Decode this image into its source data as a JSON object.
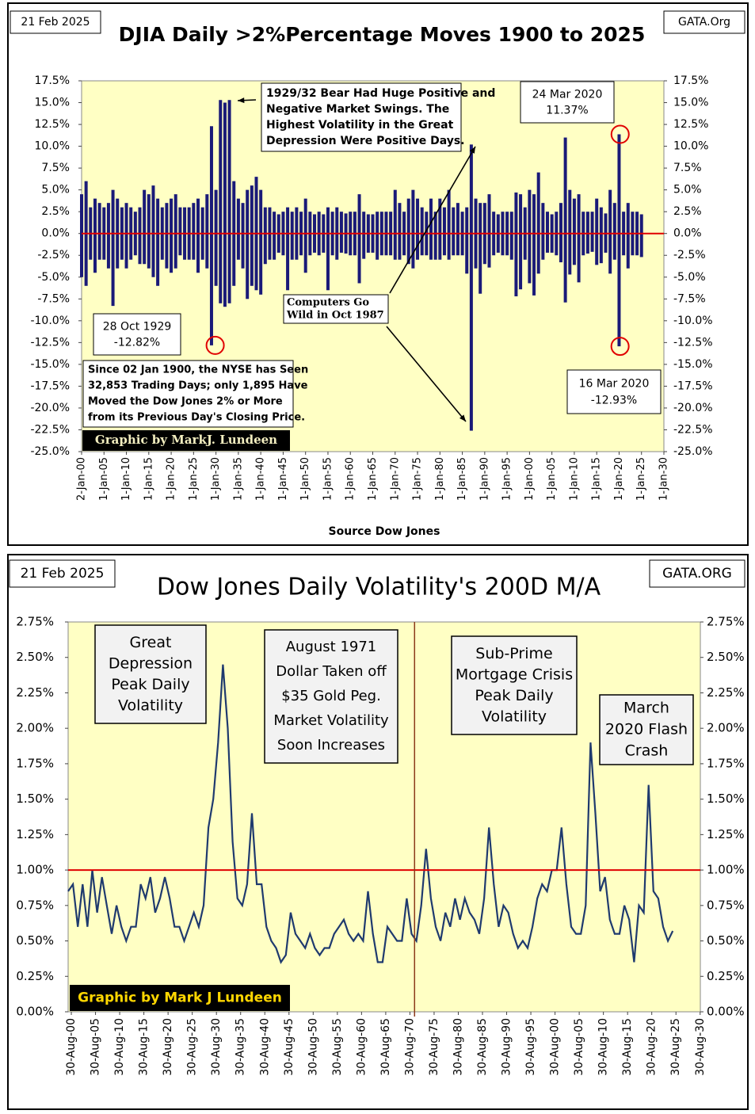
{
  "chart_data": [
    {
      "type": "bar",
      "date": "21 Feb 2025",
      "brand": "GATA.Org",
      "title": "DJIA Daily >2%Percentage Moves 1900 to 2025",
      "xlabel": "Source Dow Jones",
      "credit": "Graphic by MarkJ. Lundeen",
      "xlim": [
        1900,
        2030
      ],
      "ylim": [
        -25,
        17.5
      ],
      "yticks": [
        {
          "value": -25,
          "label": "-25.0%"
        },
        {
          "value": -22.5,
          "label": "-22.5%"
        },
        {
          "value": -20,
          "label": "-20.0%"
        },
        {
          "value": -17.5,
          "label": "-17.5%"
        },
        {
          "value": -15,
          "label": "-15.0%"
        },
        {
          "value": -12.5,
          "label": "-12.5%"
        },
        {
          "value": -10,
          "label": "-10.0%"
        },
        {
          "value": -7.5,
          "label": "-7.5%"
        },
        {
          "value": -5,
          "label": "-5.0%"
        },
        {
          "value": -2.5,
          "label": "-2.5%"
        },
        {
          "value": 0,
          "label": "0.0%"
        },
        {
          "value": 2.5,
          "label": "2.5%"
        },
        {
          "value": 5,
          "label": "5.0%"
        },
        {
          "value": 7.5,
          "label": "7.5%"
        },
        {
          "value": 10,
          "label": "10.0%"
        },
        {
          "value": 12.5,
          "label": "12.5%"
        },
        {
          "value": 15,
          "label": "15.0%"
        },
        {
          "value": 17.5,
          "label": "17.5%"
        }
      ],
      "xticks": [
        {
          "value": 1900,
          "label": "2-Jan-00"
        },
        {
          "value": 1905,
          "label": "1-Jan-05"
        },
        {
          "value": 1910,
          "label": "1-Jan-10"
        },
        {
          "value": 1915,
          "label": "1-Jan-15"
        },
        {
          "value": 1920,
          "label": "1-Jan-20"
        },
        {
          "value": 1925,
          "label": "1-Jan-25"
        },
        {
          "value": 1930,
          "label": "1-Jan-30"
        },
        {
          "value": 1935,
          "label": "1-Jan-35"
        },
        {
          "value": 1940,
          "label": "1-Jan-40"
        },
        {
          "value": 1945,
          "label": "1-Jan-45"
        },
        {
          "value": 1950,
          "label": "1-Jan-50"
        },
        {
          "value": 1955,
          "label": "1-Jan-55"
        },
        {
          "value": 1960,
          "label": "1-Jan-60"
        },
        {
          "value": 1965,
          "label": "1-Jan-65"
        },
        {
          "value": 1970,
          "label": "1-Jan-70"
        },
        {
          "value": 1975,
          "label": "1-Jan-75"
        },
        {
          "value": 1980,
          "label": "1-Jan-80"
        },
        {
          "value": 1985,
          "label": "1-Jan-85"
        },
        {
          "value": 1990,
          "label": "1-Jan-90"
        },
        {
          "value": 1995,
          "label": "1-Jan-95"
        },
        {
          "value": 2000,
          "label": "1-Jan-00"
        },
        {
          "value": 2005,
          "label": "1-Jan-05"
        },
        {
          "value": 2010,
          "label": "1-Jan-10"
        },
        {
          "value": 2015,
          "label": "1-Jan-15"
        },
        {
          "value": 2020,
          "label": "1-Jan-20"
        },
        {
          "value": 2025,
          "label": "1-Jan-25"
        },
        {
          "value": 2030,
          "label": "1-Jan-30"
        }
      ],
      "hline": 0,
      "hline_color": "#e00000",
      "x": [
        1900,
        1901,
        1902,
        1903,
        1904,
        1905,
        1906,
        1907,
        1908,
        1909,
        1910,
        1911,
        1912,
        1913,
        1914,
        1915,
        1916,
        1917,
        1918,
        1919,
        1920,
        1921,
        1922,
        1923,
        1924,
        1925,
        1926,
        1927,
        1928,
        1929,
        1930,
        1931,
        1932,
        1933,
        1934,
        1935,
        1936,
        1937,
        1938,
        1939,
        1940,
        1941,
        1942,
        1943,
        1944,
        1945,
        1946,
        1947,
        1948,
        1949,
        1950,
        1951,
        1952,
        1953,
        1954,
        1955,
        1956,
        1957,
        1958,
        1959,
        1960,
        1961,
        1962,
        1963,
        1964,
        1965,
        1966,
        1967,
        1968,
        1969,
        1970,
        1971,
        1972,
        1973,
        1974,
        1975,
        1976,
        1977,
        1978,
        1979,
        1980,
        1981,
        1982,
        1983,
        1984,
        1985,
        1986,
        1987,
        1988,
        1989,
        1990,
        1991,
        1992,
        1993,
        1994,
        1995,
        1996,
        1997,
        1998,
        1999,
        2000,
        2001,
        2002,
        2003,
        2004,
        2005,
        2006,
        2007,
        2008,
        2009,
        2010,
        2011,
        2012,
        2013,
        2014,
        2015,
        2016,
        2017,
        2018,
        2019,
        2020,
        2021,
        2022,
        2023,
        2024,
        2025
      ],
      "series": [
        {
          "color": "#1a1a78",
          "values": [
            4.5,
            6,
            3,
            4,
            3.5,
            3,
            3.5,
            5,
            4,
            3,
            3.5,
            3,
            2.5,
            3,
            5,
            4.5,
            5.5,
            4,
            3,
            3.5,
            4,
            4.5,
            3,
            3,
            3,
            3.5,
            4,
            3,
            4.5,
            12.3,
            5,
            15.3,
            15,
            15.3,
            6,
            4,
            3.5,
            5,
            5.5,
            6.5,
            5,
            3,
            3,
            2.5,
            2.2,
            2.5,
            3,
            2.5,
            3,
            2.5,
            4,
            2.5,
            2.2,
            2.5,
            2.2,
            3,
            2.5,
            3,
            2.5,
            2.3,
            2.5,
            2.5,
            4.5,
            2.5,
            2.2,
            2.2,
            2.5,
            2.5,
            2.5,
            2.5,
            5,
            3.5,
            2.5,
            4,
            5,
            4,
            3,
            2.5,
            4,
            2.5,
            4,
            3,
            5,
            3,
            3.5,
            2.5,
            3,
            10.2,
            4,
            3.5,
            3.5,
            4.5,
            2.5,
            2.2,
            2.5,
            2.5,
            2.5,
            4.7,
            4.5,
            3,
            5,
            4.5,
            7,
            3.5,
            2.5,
            2.2,
            2.5,
            3.5,
            11,
            5,
            4,
            4.5,
            2.5,
            2.5,
            2.5,
            4,
            3,
            2.3,
            5,
            3.5,
            11.37,
            2.5,
            3.5,
            2.5,
            2.5,
            2.2
          ]
        },
        {
          "color": "#1a1a78",
          "values": [
            -5,
            -6,
            -3,
            -4.5,
            -3,
            -3,
            -4,
            -8.3,
            -4,
            -3,
            -4,
            -3,
            -2.5,
            -3.5,
            -3.5,
            -4,
            -5,
            -6,
            -3,
            -4,
            -4.5,
            -4,
            -2.5,
            -3,
            -3,
            -3,
            -4.5,
            -3,
            -4,
            -12.82,
            -6,
            -8,
            -8.4,
            -8,
            -6,
            -3,
            -4,
            -7.5,
            -6,
            -6.5,
            -7,
            -3.5,
            -3,
            -3,
            -2.2,
            -2.5,
            -6.5,
            -3,
            -3,
            -2.5,
            -4.5,
            -2.5,
            -2.2,
            -2.5,
            -2.2,
            -6.5,
            -2.5,
            -3,
            -2.2,
            -2.3,
            -2.5,
            -2.5,
            -5.7,
            -2.9,
            -2.2,
            -2.2,
            -3,
            -2.5,
            -2.5,
            -2.5,
            -3,
            -3,
            -2.5,
            -3.5,
            -4,
            -3,
            -2.5,
            -2.5,
            -3,
            -3,
            -3,
            -2.5,
            -3,
            -2.5,
            -2.5,
            -2.5,
            -4.6,
            -22.6,
            -4,
            -6.9,
            -3.5,
            -3.9,
            -2.5,
            -2.2,
            -2.5,
            -2.5,
            -3,
            -7.2,
            -6.4,
            -3,
            -5.7,
            -7.1,
            -4.6,
            -3,
            -2.2,
            -2.2,
            -2.5,
            -3.3,
            -7.9,
            -4.7,
            -3.6,
            -5.6,
            -2.5,
            -2.3,
            -2.1,
            -3.6,
            -3.4,
            -2.2,
            -4.6,
            -3,
            -12.93,
            -2.5,
            -4,
            -2.5,
            -2.5,
            -2.7
          ]
        }
      ],
      "highlights": [
        {
          "x": 1929.82,
          "value": -12.82,
          "date": "28 Oct 1929",
          "value_label": "-12.82%"
        },
        {
          "x": 2020.21,
          "value": -12.93,
          "date": "16 Mar 2020",
          "value_label": "-12.93%"
        },
        {
          "x": 2020.23,
          "value": 11.37,
          "date": "24 Mar 2020",
          "value_label": "11.37%"
        }
      ],
      "annotations": [
        {
          "lines": [
            "1929/32 Bear Had Huge Positive and",
            "Negative Market Swings.  The",
            "Highest Volatility in the Great",
            "Depression Were Positive Days."
          ]
        },
        {
          "lines": [
            "Computers Go",
            "Wild in Oct 1987"
          ]
        },
        {
          "lines": [
            "Since 02 Jan 1900, the NYSE has Seen",
            "32,853 Trading Days; only 1,895 Have",
            "Moved the Dow Jones 2% or More",
            "from its Previous Day's Closing Price."
          ]
        }
      ]
    },
    {
      "type": "line",
      "date": "21 Feb 2025",
      "brand": "GATA.ORG",
      "title": "Dow Jones Daily Volatility's 200D M/A",
      "credit": "Graphic by Mark J Lundeen",
      "xlim": [
        1900,
        2030.7
      ],
      "ylim": [
        0,
        2.75
      ],
      "yticks": [
        {
          "value": 0,
          "label": "0.00%"
        },
        {
          "value": 0.25,
          "label": "0.25%"
        },
        {
          "value": 0.5,
          "label": "0.50%"
        },
        {
          "value": 0.75,
          "label": "0.75%"
        },
        {
          "value": 1,
          "label": "1.00%"
        },
        {
          "value": 1.25,
          "label": "1.25%"
        },
        {
          "value": 1.5,
          "label": "1.50%"
        },
        {
          "value": 1.75,
          "label": "1.75%"
        },
        {
          "value": 2,
          "label": "2.00%"
        },
        {
          "value": 2.25,
          "label": "2.25%"
        },
        {
          "value": 2.5,
          "label": "2.50%"
        },
        {
          "value": 2.75,
          "label": "2.75%"
        }
      ],
      "xticks": [
        {
          "value": 1900.66,
          "label": "30-Aug-00"
        },
        {
          "value": 1905.66,
          "label": "30-Aug-05"
        },
        {
          "value": 1910.66,
          "label": "30-Aug-10"
        },
        {
          "value": 1915.66,
          "label": "30-Aug-15"
        },
        {
          "value": 1920.66,
          "label": "30-Aug-20"
        },
        {
          "value": 1925.66,
          "label": "30-Aug-25"
        },
        {
          "value": 1930.66,
          "label": "30-Aug-30"
        },
        {
          "value": 1935.66,
          "label": "30-Aug-35"
        },
        {
          "value": 1940.66,
          "label": "30-Aug-40"
        },
        {
          "value": 1945.66,
          "label": "30-Aug-45"
        },
        {
          "value": 1950.66,
          "label": "30-Aug-50"
        },
        {
          "value": 1955.66,
          "label": "30-Aug-55"
        },
        {
          "value": 1960.66,
          "label": "30-Aug-60"
        },
        {
          "value": 1965.66,
          "label": "30-Aug-65"
        },
        {
          "value": 1970.66,
          "label": "30-Aug-70"
        },
        {
          "value": 1975.66,
          "label": "30-Aug-75"
        },
        {
          "value": 1980.66,
          "label": "30-Aug-80"
        },
        {
          "value": 1985.66,
          "label": "30-Aug-85"
        },
        {
          "value": 1990.66,
          "label": "30-Aug-90"
        },
        {
          "value": 1995.66,
          "label": "30-Aug-95"
        },
        {
          "value": 2000.66,
          "label": "30-Aug-00"
        },
        {
          "value": 2005.66,
          "label": "30-Aug-05"
        },
        {
          "value": 2010.66,
          "label": "30-Aug-10"
        },
        {
          "value": 2015.66,
          "label": "30-Aug-15"
        },
        {
          "value": 2020.66,
          "label": "30-Aug-20"
        },
        {
          "value": 2025.66,
          "label": "30-Aug-25"
        },
        {
          "value": 2030.66,
          "label": "30-Aug-30"
        }
      ],
      "hline": 1,
      "hline_color": "#e00000",
      "vline": 1971.62,
      "vline_color": "#8b3a1a",
      "x": [
        1900,
        1901,
        1902,
        1903,
        1904,
        1905,
        1906,
        1907,
        1908,
        1909,
        1910,
        1911,
        1912,
        1913,
        1914,
        1915,
        1916,
        1917,
        1918,
        1919,
        1920,
        1921,
        1922,
        1923,
        1924,
        1925,
        1926,
        1927,
        1928,
        1929,
        1930,
        1931,
        1932,
        1933,
        1934,
        1935,
        1936,
        1937,
        1938,
        1939,
        1940,
        1941,
        1942,
        1943,
        1944,
        1945,
        1946,
        1947,
        1948,
        1949,
        1950,
        1951,
        1952,
        1953,
        1954,
        1955,
        1956,
        1957,
        1958,
        1959,
        1960,
        1961,
        1962,
        1963,
        1964,
        1965,
        1966,
        1967,
        1968,
        1969,
        1970,
        1971,
        1972,
        1973,
        1974,
        1975,
        1976,
        1977,
        1978,
        1979,
        1980,
        1981,
        1982,
        1983,
        1984,
        1985,
        1986,
        1987,
        1988,
        1989,
        1990,
        1991,
        1992,
        1993,
        1994,
        1995,
        1996,
        1997,
        1998,
        1999,
        2000,
        2001,
        2002,
        2003,
        2004,
        2005,
        2006,
        2007,
        2008,
        2009,
        2010,
        2011,
        2012,
        2013,
        2014,
        2015,
        2016,
        2017,
        2018,
        2019,
        2020,
        2021,
        2022,
        2023,
        2024,
        2025
      ],
      "series": [
        {
          "color": "#1f3a6e",
          "values": [
            0.85,
            0.9,
            0.6,
            0.9,
            0.6,
            1.0,
            0.7,
            0.95,
            0.75,
            0.55,
            0.75,
            0.6,
            0.5,
            0.6,
            0.6,
            0.9,
            0.8,
            0.95,
            0.7,
            0.8,
            0.95,
            0.8,
            0.6,
            0.6,
            0.5,
            0.6,
            0.7,
            0.6,
            0.75,
            1.3,
            1.5,
            1.9,
            2.45,
            2.0,
            1.2,
            0.8,
            0.75,
            0.9,
            1.4,
            0.9,
            0.9,
            0.6,
            0.5,
            0.45,
            0.35,
            0.4,
            0.7,
            0.55,
            0.5,
            0.45,
            0.55,
            0.45,
            0.4,
            0.45,
            0.45,
            0.55,
            0.6,
            0.65,
            0.55,
            0.5,
            0.55,
            0.5,
            0.85,
            0.55,
            0.35,
            0.35,
            0.6,
            0.55,
            0.5,
            0.5,
            0.8,
            0.55,
            0.5,
            0.75,
            1.15,
            0.8,
            0.6,
            0.5,
            0.7,
            0.6,
            0.8,
            0.65,
            0.8,
            0.7,
            0.65,
            0.55,
            0.8,
            1.3,
            0.9,
            0.6,
            0.75,
            0.7,
            0.55,
            0.45,
            0.5,
            0.45,
            0.6,
            0.8,
            0.9,
            0.85,
            1.0,
            1.0,
            1.3,
            0.9,
            0.6,
            0.55,
            0.55,
            0.75,
            1.9,
            1.4,
            0.85,
            0.95,
            0.65,
            0.55,
            0.55,
            0.75,
            0.65,
            0.35,
            0.75,
            0.7,
            1.6,
            0.85,
            0.8,
            0.6,
            0.5,
            0.57
          ]
        }
      ],
      "annotations": [
        {
          "lines": [
            "Great",
            "Depression",
            "Peak Daily",
            "Volatility"
          ]
        },
        {
          "lines": [
            "August 1971",
            "Dollar Taken off",
            "$35 Gold Peg.",
            "Market Volatility",
            "Soon Increases"
          ]
        },
        {
          "lines": [
            "Sub-Prime",
            "Mortgage Crisis",
            "Peak Daily",
            "Volatility"
          ]
        },
        {
          "lines": [
            "March",
            "2020 Flash",
            "Crash"
          ]
        }
      ]
    }
  ]
}
